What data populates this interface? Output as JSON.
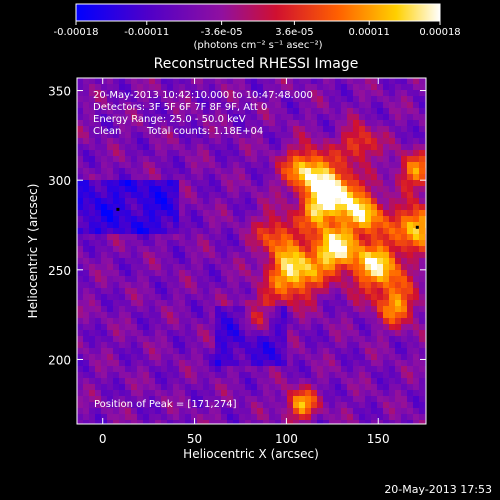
{
  "chart_data": {
    "type": "heatmap",
    "title": "Reconstructed RHESSI Image",
    "xlabel": "Heliocentric X (arcsec)",
    "ylabel": "Heliocentric Y (arcsec)",
    "xlim": [
      -14,
      176
    ],
    "ylim": [
      164,
      357
    ],
    "x_ticks": [
      "0",
      "50",
      "100",
      "150"
    ],
    "x_tick_values": [
      0,
      50,
      100,
      150
    ],
    "y_ticks": [
      "200",
      "250",
      "300",
      "350"
    ],
    "y_tick_values": [
      200,
      250,
      300,
      350
    ],
    "colorbar": {
      "range": [
        -0.00018,
        0.00018
      ],
      "tick_labels": [
        "-0.00018",
        "-0.00011",
        "-3.6e-05",
        "3.6e-05",
        "0.00011",
        "0.00018"
      ],
      "tick_values": [
        -0.00018,
        -0.00011,
        -3.6e-05,
        3.6e-05,
        0.00011,
        0.00018
      ],
      "unit_label": "(photons cm⁻² s⁻¹ asec⁻²)",
      "colors": [
        "#0000ff",
        "#5000c8",
        "#9010a0",
        "#d01030",
        "#ff6000",
        "#ffd000",
        "#ffffff"
      ]
    },
    "annotations": {
      "time": "20-May-2013 10:42:10.000 to 10:47:48.000",
      "detectors": "Detectors: 3F 5F 6F 7F 8F 9F, Att 0",
      "energy": "Energy Range: 25.0 - 50.0 keV",
      "method": "Clean",
      "counts": "Total counts: 1.18E+04",
      "peak": "Position of Peak = [171,274]"
    },
    "grid": false
  },
  "footer_timestamp": "20-May-2013 17:53"
}
